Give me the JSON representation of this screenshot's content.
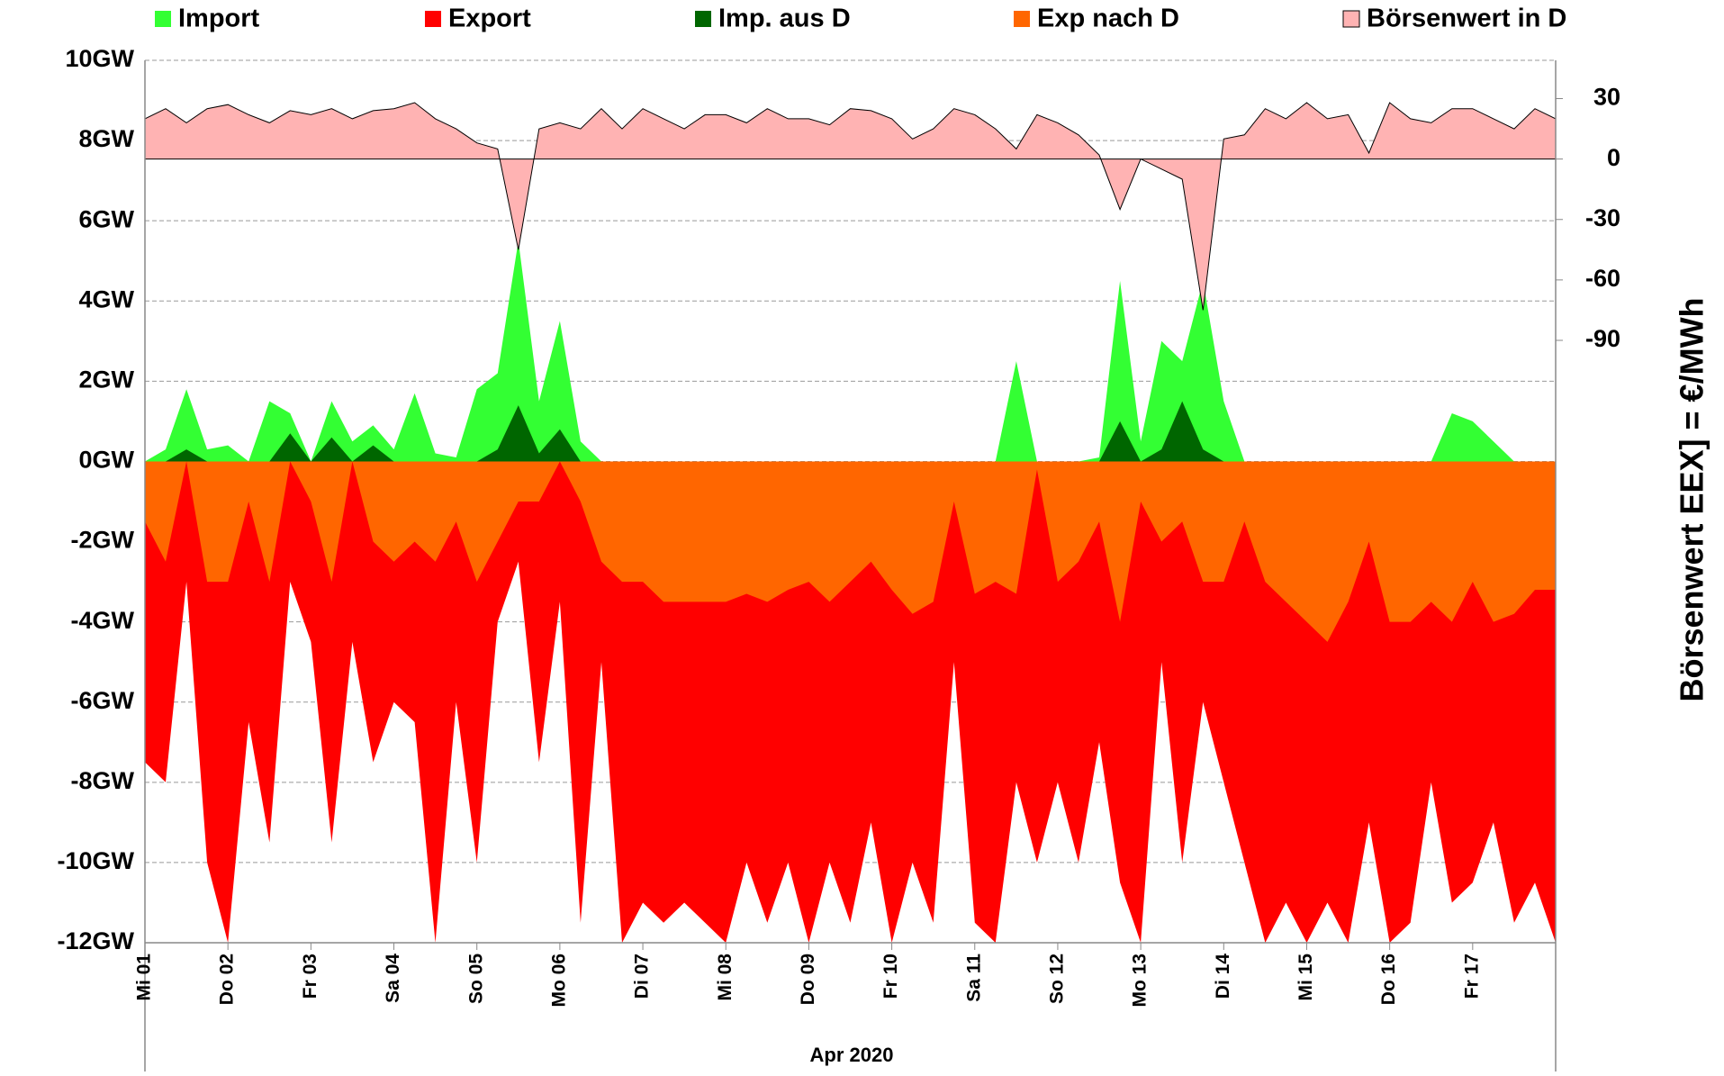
{
  "chart_data": {
    "type": "area",
    "x_label": "Apr 2020",
    "y2_label": "Börsenwert EEX] = €/MWh",
    "categories": [
      "Mi 01",
      null,
      null,
      null,
      "Do 02",
      null,
      null,
      null,
      "Fr 03",
      null,
      null,
      null,
      "Sa 04",
      null,
      null,
      null,
      "So 05",
      null,
      null,
      null,
      "Mo 06",
      null,
      null,
      null,
      "Di 07",
      null,
      null,
      null,
      "Mi 08",
      null,
      null,
      null,
      "Do 09",
      null,
      null,
      null,
      "Fr 10",
      null,
      null,
      null,
      "Sa 11",
      null,
      null,
      null,
      "So 12",
      null,
      null,
      null,
      "Mo 13",
      null,
      null,
      null,
      "Di 14",
      null,
      null,
      null,
      "Mi 15",
      null,
      null,
      null,
      "Do 16",
      null,
      null,
      null,
      "Fr 17",
      null,
      null,
      null,
      null
    ],
    "series": [
      {
        "name": "Import",
        "color": "#33ff33",
        "values": [
          0,
          0.3,
          1.8,
          0.3,
          0.4,
          0,
          1.5,
          1.2,
          0,
          1.5,
          0.5,
          0.9,
          0.3,
          1.7,
          0.2,
          0.1,
          1.8,
          2.2,
          5.5,
          1.5,
          3.5,
          0.5,
          0,
          0,
          0,
          0,
          0,
          0,
          0,
          0,
          0,
          0,
          0,
          0,
          0,
          0,
          0,
          0,
          0,
          0,
          0,
          0,
          2.5,
          0,
          0,
          0,
          0.1,
          4.5,
          0.5,
          3,
          2.5,
          4.5,
          1.5,
          0,
          0,
          0,
          0,
          0,
          0,
          0,
          0,
          0,
          0,
          1.2,
          1,
          0.5,
          0,
          0,
          0
        ]
      },
      {
        "name": "Export",
        "color": "#ff0000",
        "values": [
          -7.5,
          -8,
          -3,
          -10,
          -12,
          -6.5,
          -9.5,
          -3,
          -4.5,
          -9.5,
          -4.5,
          -7.5,
          -6,
          -6.5,
          -12,
          -6,
          -10,
          -4,
          -2.5,
          -7.5,
          -3.5,
          -11.5,
          -5,
          -12,
          -11,
          -11.5,
          -11,
          -11.5,
          -12,
          -10,
          -11.5,
          -10,
          -12,
          -10,
          -11.5,
          -9,
          -12,
          -10,
          -11.5,
          -5,
          -11.5,
          -12,
          -8,
          -10,
          -8,
          -10,
          -7,
          -10.5,
          -12,
          -5,
          -10,
          -6,
          -8,
          -10,
          -12,
          -11,
          -12,
          -11,
          -12,
          -9,
          -12,
          -11.5,
          -8,
          -11,
          -10.5,
          -9,
          -11.5,
          -10.5,
          -12
        ]
      },
      {
        "name": "Imp. aus D",
        "color": "#006600",
        "values": [
          0,
          0,
          0.3,
          0,
          0,
          0,
          0,
          0.7,
          0,
          0.6,
          0,
          0.4,
          0,
          0,
          0,
          0,
          0,
          0.3,
          1.4,
          0.2,
          0.8,
          0,
          0,
          0,
          0,
          0,
          0,
          0,
          0,
          0,
          0,
          0,
          0,
          0,
          0,
          0,
          0,
          0,
          0,
          0,
          0,
          0,
          0,
          0,
          0,
          0,
          0,
          1,
          0,
          0.3,
          1.5,
          0.3,
          0,
          0,
          0,
          0,
          0,
          0,
          0,
          0,
          0,
          0,
          0,
          0,
          0,
          0,
          0,
          0,
          0
        ]
      },
      {
        "name": "Exp nach D",
        "color": "#ff6600",
        "values": [
          -1.5,
          -2.5,
          0,
          -3,
          -3,
          -1,
          -3,
          0,
          -1,
          -3,
          0,
          -2,
          -2.5,
          -2,
          -2.5,
          -1.5,
          -3,
          -2,
          -1,
          -1,
          0,
          -1,
          -2.5,
          -3,
          -3,
          -3.5,
          -3.5,
          -3.5,
          -3.5,
          -3.3,
          -3.5,
          -3.2,
          -3,
          -3.5,
          -3,
          -2.5,
          -3.2,
          -3.8,
          -3.5,
          -1,
          -3.3,
          -3,
          -3.3,
          -0.2,
          -3,
          -2.5,
          -1.5,
          -4,
          -1,
          -2,
          -1.5,
          -3,
          -3,
          -1.5,
          -3,
          -3.5,
          -4,
          -4.5,
          -3.5,
          -2,
          -4,
          -4,
          -3.5,
          -4,
          -3,
          -4,
          -3.8,
          -3.2,
          -3.2
        ]
      },
      {
        "name": "Börsenwert in D",
        "color": "#ffb3b3",
        "axis": "y2",
        "values": [
          20,
          25,
          18,
          25,
          27,
          22,
          18,
          24,
          22,
          25,
          20,
          24,
          25,
          28,
          20,
          15,
          8,
          5,
          -45,
          15,
          18,
          15,
          25,
          15,
          25,
          20,
          15,
          22,
          22,
          18,
          25,
          20,
          20,
          17,
          25,
          24,
          20,
          10,
          15,
          25,
          22,
          15,
          5,
          22,
          18,
          12,
          2,
          -25,
          0,
          -5,
          -10,
          -75,
          10,
          12,
          25,
          20,
          28,
          20,
          22,
          3,
          28,
          20,
          18,
          25,
          25,
          20,
          15,
          25,
          20
        ]
      }
    ],
    "ylim": [
      -12,
      10
    ],
    "yticks": [
      {
        "value": 10,
        "label": "10GW"
      },
      {
        "value": 8,
        "label": "8GW"
      },
      {
        "value": 6,
        "label": "6GW"
      },
      {
        "value": 4,
        "label": "4GW"
      },
      {
        "value": 2,
        "label": "2GW"
      },
      {
        "value": 0,
        "label": "0GW"
      },
      {
        "value": -2,
        "label": "-2GW"
      },
      {
        "value": -4,
        "label": "-4GW"
      },
      {
        "value": -6,
        "label": "-6GW"
      },
      {
        "value": -8,
        "label": "-8GW"
      },
      {
        "value": -10,
        "label": "-10GW"
      },
      {
        "value": -12,
        "label": "-12GW"
      }
    ],
    "y2lim": [
      -389,
      49
    ],
    "y2ticks": [
      30,
      0,
      -30,
      -60,
      -90
    ],
    "grid": true
  }
}
